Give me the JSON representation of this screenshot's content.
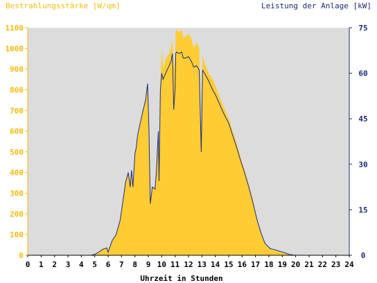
{
  "chart_data": {
    "type": "area",
    "title_left": "Bestrahlungsstärke [W/qm]",
    "title_right": "Leistung der Anlage [kW]",
    "xlabel": "Uhrzeit in Stunden",
    "xlim": [
      0,
      24
    ],
    "x_ticks": [
      0,
      1,
      2,
      3,
      4,
      5,
      6,
      7,
      8,
      9,
      10,
      11,
      12,
      13,
      14,
      15,
      16,
      17,
      18,
      19,
      20,
      21,
      22,
      23,
      24
    ],
    "ylim_left": [
      0,
      1100
    ],
    "y_ticks_left": [
      0,
      100,
      200,
      300,
      400,
      500,
      600,
      700,
      800,
      900,
      1000,
      1100
    ],
    "ylim_right": [
      0,
      75
    ],
    "y_ticks_right": [
      0,
      15,
      30,
      45,
      60,
      75
    ],
    "colors": {
      "irradiance_fill": "#ffcc33",
      "power_line": "#1a2a7a",
      "plot_background": "#dcdcdc",
      "left_axis": "#f7b90f",
      "right_axis": "#1a2a7a"
    },
    "series": [
      {
        "axis": "left",
        "render": "area",
        "x": [
          0,
          4.7,
          5.0,
          5.3,
          5.6,
          5.9,
          6.0,
          6.3,
          6.6,
          6.9,
          7.1,
          7.3,
          7.5,
          7.65,
          7.75,
          7.85,
          8.0,
          8.1,
          8.2,
          8.4,
          8.6,
          8.8,
          8.95,
          9.05,
          9.15,
          9.3,
          9.5,
          9.6,
          9.75,
          9.8,
          9.9,
          10.0,
          10.1,
          10.3,
          10.5,
          10.7,
          10.8,
          10.9,
          11.0,
          11.05,
          11.1,
          11.3,
          11.5,
          11.6,
          11.8,
          12.0,
          12.2,
          12.4,
          12.6,
          12.8,
          12.95,
          13.05,
          13.2,
          13.5,
          13.8,
          14.0,
          14.3,
          14.6,
          15.0,
          15.3,
          15.6,
          15.9,
          16.2,
          16.5,
          16.8,
          17.1,
          17.4,
          17.7,
          17.9,
          18.1,
          18.3,
          18.6,
          18.9,
          19.2,
          19.5,
          19.8,
          20.0,
          20.3,
          24
        ],
        "y": [
          0,
          0,
          5,
          15,
          30,
          40,
          15,
          70,
          100,
          170,
          260,
          350,
          400,
          330,
          410,
          330,
          490,
          520,
          580,
          640,
          700,
          750,
          830,
          600,
          250,
          330,
          320,
          400,
          600,
          360,
          800,
          1000,
          900,
          950,
          970,
          1000,
          1040,
          900,
          950,
          1080,
          1090,
          1080,
          1090,
          1050,
          1060,
          1070,
          1050,
          1000,
          1030,
          1000,
          500,
          970,
          930,
          880,
          850,
          820,
          770,
          720,
          660,
          600,
          540,
          470,
          410,
          340,
          270,
          180,
          110,
          60,
          40,
          30,
          25,
          20,
          15,
          10,
          5,
          2,
          0,
          0,
          0
        ]
      },
      {
        "axis": "right",
        "render": "line",
        "x": [
          0,
          4.7,
          5.0,
          5.3,
          5.6,
          5.9,
          6.0,
          6.3,
          6.6,
          6.9,
          7.1,
          7.3,
          7.5,
          7.65,
          7.75,
          7.85,
          8.0,
          8.1,
          8.2,
          8.4,
          8.6,
          8.8,
          8.95,
          9.05,
          9.15,
          9.3,
          9.5,
          9.6,
          9.75,
          9.8,
          9.9,
          10.0,
          10.1,
          10.3,
          10.5,
          10.7,
          10.8,
          10.9,
          11.0,
          11.05,
          11.1,
          11.3,
          11.5,
          11.6,
          11.8,
          12.0,
          12.2,
          12.4,
          12.6,
          12.8,
          12.95,
          13.05,
          13.2,
          13.5,
          13.8,
          14.0,
          14.3,
          14.6,
          15.0,
          15.3,
          15.6,
          15.9,
          16.2,
          16.5,
          16.8,
          17.1,
          17.4,
          17.7,
          17.9,
          18.1,
          18.3,
          18.6,
          18.9,
          19.2,
          19.5,
          19.8,
          20.0,
          20.3,
          24
        ],
        "y": [
          0,
          0,
          0.3,
          1.0,
          2.0,
          2.4,
          1.0,
          4.8,
          6.8,
          11.6,
          17.7,
          23.9,
          27.3,
          22.5,
          28.0,
          22.5,
          33.4,
          35.5,
          39.5,
          43.6,
          47.7,
          51.1,
          56.6,
          40.9,
          17.0,
          22.5,
          21.8,
          27.3,
          40.9,
          24.5,
          54.5,
          60.0,
          58.0,
          60.0,
          62.0,
          64.0,
          66.5,
          48.0,
          55.0,
          66.5,
          67.0,
          66.5,
          67.0,
          65.0,
          65.0,
          65.5,
          64.0,
          62.0,
          62.5,
          61.0,
          34.0,
          61.0,
          60.0,
          57.5,
          54.5,
          53.0,
          50.0,
          47.0,
          43.6,
          39.5,
          35.5,
          31.0,
          27.0,
          22.5,
          17.5,
          12.0,
          7.5,
          4.0,
          3.0,
          2.2,
          2.0,
          1.6,
          1.2,
          0.8,
          0.3,
          0.1,
          0,
          0,
          0
        ]
      }
    ]
  }
}
